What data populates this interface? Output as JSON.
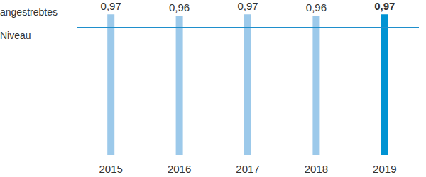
{
  "chart_data": {
    "type": "bar",
    "categories": [
      "2015",
      "2016",
      "2017",
      "2018",
      "2019"
    ],
    "values": [
      0.97,
      0.96,
      0.97,
      0.96,
      0.97
    ],
    "value_labels": [
      "0,97",
      "0,96",
      "0,97",
      "0,96",
      "0,97"
    ],
    "colors": [
      "#9cc9ea",
      "#9cc9ea",
      "#9cc9ea",
      "#9cc9ea",
      "#0093d3"
    ],
    "ylim": [
      0,
      1
    ],
    "reference_line": {
      "label": "angestrebtes Niveau",
      "value": 0.88,
      "color": "#1f8fcc"
    },
    "data_labels": true,
    "tick_labels": "x",
    "grid": false
  }
}
